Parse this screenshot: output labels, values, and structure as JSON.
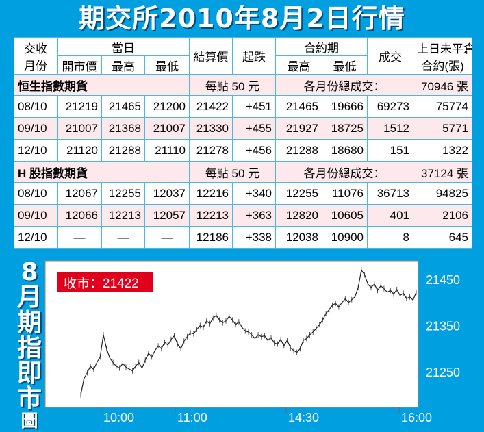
{
  "title": "期交所2010年8月2日行情",
  "header": {
    "contract_month": [
      "交收",
      "月份"
    ],
    "day_group": "當日",
    "open": "開市價",
    "high": "最高",
    "low": "最低",
    "settle": "結算價",
    "change": "起跌",
    "contract_group": "合約期",
    "c_high": "最高",
    "c_low": "最低",
    "volume": "成交",
    "oi": [
      "上日未平倉",
      "合約(張)"
    ]
  },
  "sections": [
    {
      "name": "恒生指數期貨",
      "per_point": "每點 50 元",
      "volume_label": "各月份總成交：",
      "volume_total": "70946 張",
      "rows": [
        {
          "month": "08/10",
          "open": "21219",
          "high": "21465",
          "low": "21200",
          "settle": "21422",
          "change": "+451",
          "c_high": "21465",
          "c_low": "19666",
          "volume": "69273",
          "oi": "75774"
        },
        {
          "month": "09/10",
          "open": "21007",
          "high": "21368",
          "low": "21007",
          "settle": "21330",
          "change": "+455",
          "c_high": "21927",
          "c_low": "18725",
          "volume": "1512",
          "oi": "5771"
        },
        {
          "month": "12/10",
          "open": "21120",
          "high": "21288",
          "low": "21110",
          "settle": "21278",
          "change": "+456",
          "c_high": "21288",
          "c_low": "18680",
          "volume": "151",
          "oi": "1322"
        }
      ]
    },
    {
      "name": "H 股指數期貨",
      "per_point": "每點 50 元",
      "volume_label": "各月份總成交：",
      "volume_total": "37124 張",
      "rows": [
        {
          "month": "08/10",
          "open": "12067",
          "high": "12255",
          "low": "12037",
          "settle": "12216",
          "change": "+340",
          "c_high": "12255",
          "c_low": "11076",
          "volume": "36713",
          "oi": "94825"
        },
        {
          "month": "09/10",
          "open": "12066",
          "high": "12213",
          "low": "12057",
          "settle": "12213",
          "change": "+363",
          "c_high": "12820",
          "c_low": "10605",
          "volume": "401",
          "oi": "2106"
        },
        {
          "month": "12/10",
          "open": "—",
          "high": "—",
          "low": "—",
          "settle": "12186",
          "change": "+338",
          "c_high": "12038",
          "c_low": "10900",
          "volume": "8",
          "oi": "645"
        }
      ]
    }
  ],
  "chart_title": [
    "8",
    "月",
    "期",
    "指",
    "即",
    "市",
    "圖"
  ],
  "close_label": "收市：21422",
  "colors": {
    "background": "#00a0e0",
    "badge": "#e0001b",
    "row_pink": "#fde9ec",
    "line": "#222222"
  },
  "chart_data": {
    "type": "line",
    "xlabel": "",
    "ylabel": "",
    "x_ticks": [
      "10:00",
      "11:00",
      "14:30",
      "16:00"
    ],
    "y_ticks": [
      21250,
      21350,
      21450
    ],
    "ylim": [
      21180,
      21500
    ],
    "grid": false,
    "series": [
      {
        "values": [
          21200,
          21235,
          21248,
          21262,
          21255,
          21270,
          21282,
          21330,
          21300,
          21280,
          21270,
          21262,
          21258,
          21268,
          21260,
          21256,
          21252,
          21262,
          21270,
          21258,
          21275,
          21290,
          21282,
          21296,
          21306,
          21300,
          21314,
          21308,
          21320,
          21328,
          21310,
          21300,
          21316,
          21326,
          21334,
          21332,
          21342,
          21350,
          21346,
          21360,
          21354,
          21366,
          21372,
          21362,
          21356,
          21360,
          21370,
          21362,
          21352,
          21358,
          21346,
          21338,
          21336,
          21330,
          21322,
          21330,
          21326,
          21328,
          21318,
          21324,
          21312,
          21310,
          21320,
          21306,
          21318,
          21302,
          21296,
          21292,
          21300,
          21318,
          21322,
          21330,
          21336,
          21344,
          21352,
          21362,
          21376,
          21384,
          21394,
          21398,
          21390,
          21400,
          21408,
          21400,
          21406,
          21412,
          21432,
          21470,
          21460,
          21440,
          21432,
          21440,
          21426,
          21436,
          21430,
          21422,
          21426,
          21418,
          21428,
          21415,
          21420,
          21408,
          21412,
          21405,
          21422
        ]
      }
    ]
  }
}
